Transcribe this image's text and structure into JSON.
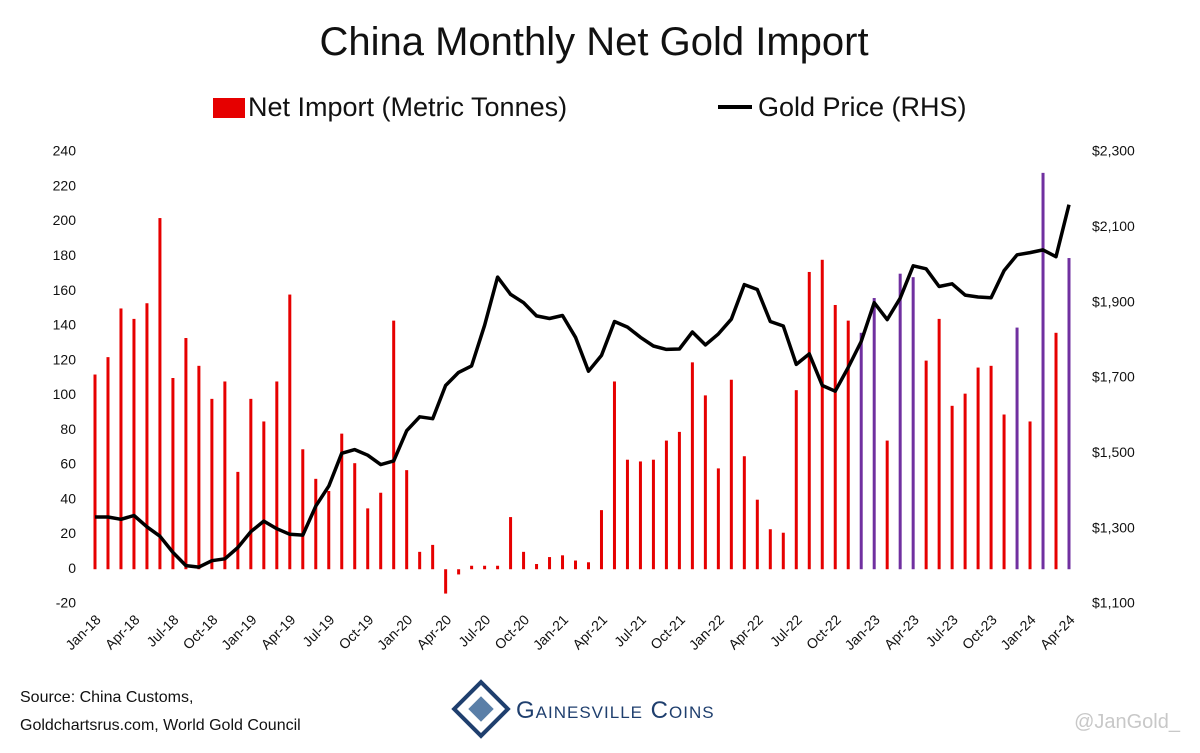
{
  "chart_data": {
    "type": "bar",
    "title": "China Monthly Net Gold Import",
    "categories": [
      "Jan-18",
      null,
      null,
      "Apr-18",
      null,
      null,
      "Jul-18",
      null,
      null,
      "Oct-18",
      null,
      null,
      "Jan-19",
      null,
      null,
      "Apr-19",
      null,
      null,
      "Jul-19",
      null,
      null,
      "Oct-19",
      null,
      null,
      "Jan-20",
      null,
      null,
      "Apr-20",
      null,
      null,
      "Jul-20",
      null,
      null,
      "Oct-20",
      null,
      null,
      "Jan-21",
      null,
      null,
      "Apr-21",
      null,
      null,
      "Jul-21",
      null,
      null,
      "Oct-21",
      null,
      null,
      "Jan-22",
      null,
      null,
      "Apr-22",
      null,
      null,
      "Jul-22",
      null,
      null,
      "Oct-22",
      null,
      null,
      "Jan-23",
      null,
      null,
      "Apr-23",
      null,
      null,
      "Jul-23",
      null,
      null,
      "Oct-23",
      null,
      null,
      "Jan-24",
      null,
      null,
      "Apr-24"
    ],
    "series": [
      {
        "name": "Net Import (Metric Tonnes)",
        "type": "bar",
        "color": "#e60000",
        "colors": [
          "#e60000",
          "#e60000",
          "#e60000",
          "#e60000",
          "#e60000",
          "#e60000",
          "#e60000",
          "#e60000",
          "#e60000",
          "#e60000",
          "#e60000",
          "#e60000",
          "#e60000",
          "#e60000",
          "#e60000",
          "#e60000",
          "#e60000",
          "#e60000",
          "#e60000",
          "#e60000",
          "#e60000",
          "#e60000",
          "#e60000",
          "#e60000",
          "#e60000",
          "#e60000",
          "#e60000",
          "#e60000",
          "#e60000",
          "#e60000",
          "#e60000",
          "#e60000",
          "#e60000",
          "#e60000",
          "#e60000",
          "#e60000",
          "#e60000",
          "#e60000",
          "#e60000",
          "#e60000",
          "#e60000",
          "#e60000",
          "#e60000",
          "#e60000",
          "#e60000",
          "#e60000",
          "#e60000",
          "#e60000",
          "#e60000",
          "#e60000",
          "#e60000",
          "#e60000",
          "#e60000",
          "#e60000",
          "#e60000",
          "#e60000",
          "#e60000",
          "#e60000",
          "#e60000",
          "#7030a0",
          "#7030a0",
          "#e60000",
          "#7030a0",
          "#7030a0",
          "#e60000",
          "#e60000",
          "#e60000",
          "#e60000",
          "#e60000",
          "#e60000",
          "#e60000",
          "#7030a0",
          "#e60000",
          "#7030a0",
          "#e60000",
          "#7030a0"
        ],
        "values": [
          112,
          122,
          150,
          144,
          153,
          202,
          110,
          133,
          117,
          98,
          108,
          56,
          98,
          85,
          108,
          158,
          69,
          52,
          45,
          78,
          61,
          35,
          44,
          143,
          57,
          10,
          14,
          -14,
          -3,
          2,
          2,
          2,
          30,
          10,
          3,
          7,
          8,
          5,
          4,
          34,
          108,
          63,
          62,
          63,
          74,
          79,
          119,
          100,
          58,
          109,
          65,
          40,
          23,
          21,
          103,
          171,
          178,
          152,
          143,
          136,
          156,
          74,
          170,
          168,
          120,
          144,
          94,
          101,
          116,
          117,
          89,
          139,
          85,
          228,
          136,
          179
        ]
      },
      {
        "name": "Gold Price (RHS)",
        "type": "line",
        "color": "#000000",
        "axis": "y2",
        "values": [
          1331,
          1331,
          1325,
          1335,
          1305,
          1280,
          1237,
          1202,
          1198,
          1215,
          1220,
          1250,
          1292,
          1320,
          1300,
          1285,
          1283,
          1360,
          1413,
          1500,
          1510,
          1495,
          1470,
          1480,
          1560,
          1597,
          1592,
          1680,
          1715,
          1732,
          1840,
          1968,
          1922,
          1900,
          1865,
          1858,
          1866,
          1808,
          1718,
          1760,
          1850,
          1835,
          1808,
          1785,
          1776,
          1777,
          1822,
          1788,
          1817,
          1856,
          1948,
          1935,
          1850,
          1838,
          1736,
          1764,
          1680,
          1665,
          1728,
          1797,
          1900,
          1855,
          1912,
          1998,
          1990,
          1943,
          1950,
          1920,
          1915,
          1913,
          1985,
          2027,
          2033,
          2040,
          2022,
          2160
        ]
      }
    ],
    "ylim": [
      -20,
      240
    ],
    "yticks": [
      -20,
      0,
      20,
      40,
      60,
      80,
      100,
      120,
      140,
      160,
      180,
      200,
      220,
      240
    ],
    "y2lim": [
      1100,
      2300
    ],
    "y2ticks": [
      {
        "value": 1100,
        "label": "$1,100"
      },
      {
        "value": 1300,
        "label": "$1,300"
      },
      {
        "value": 1500,
        "label": "$1,500"
      },
      {
        "value": 1700,
        "label": "$1,700"
      },
      {
        "value": 1900,
        "label": "$1,900"
      },
      {
        "value": 2100,
        "label": "$2,100"
      },
      {
        "value": 2300,
        "label": "$2,300"
      }
    ],
    "grid": false,
    "source": [
      "Source: China Customs,",
      "Goldchartsrus.com, World Gold Council"
    ],
    "logo": "Gainesville Coins",
    "watermark": "@JanGold_"
  }
}
